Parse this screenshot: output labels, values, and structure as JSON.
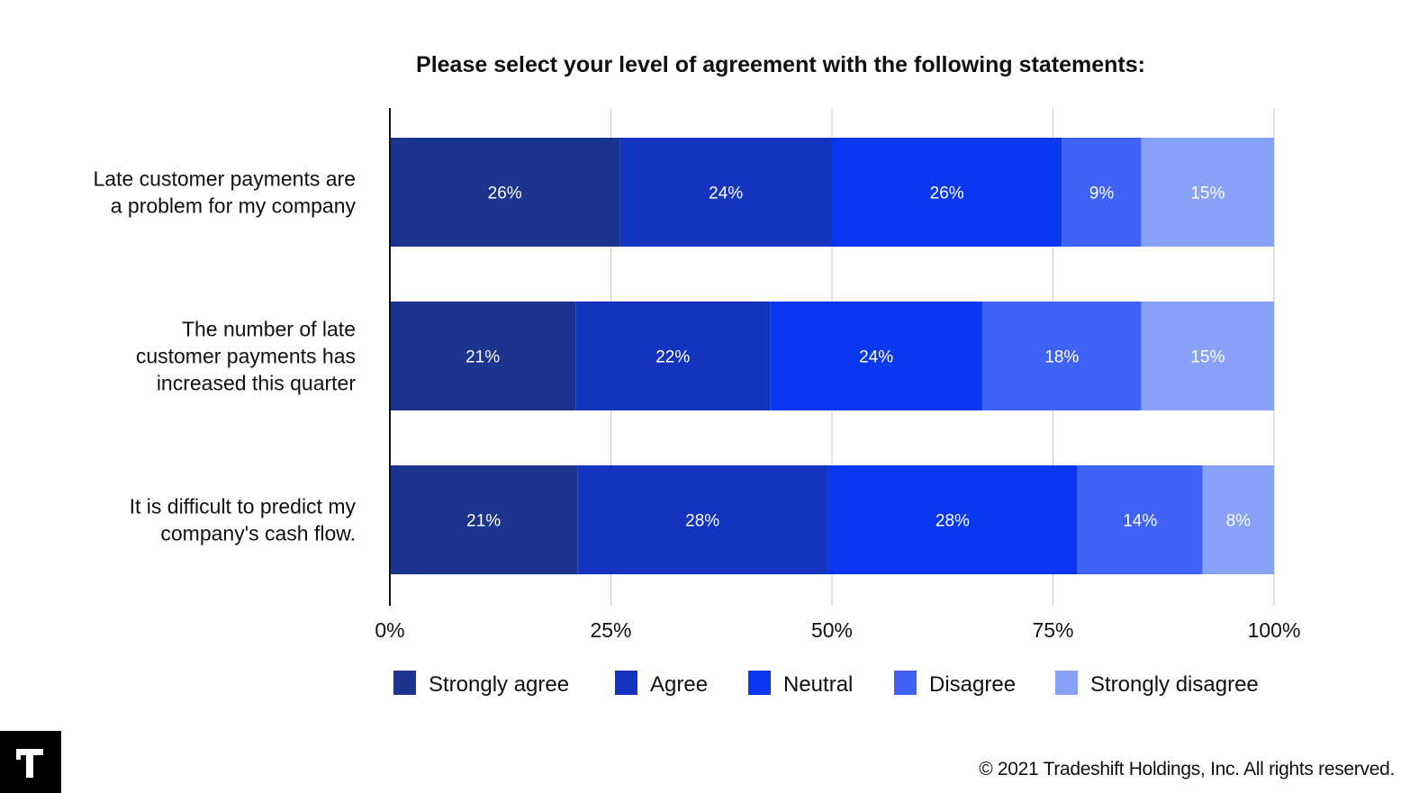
{
  "chart_data": {
    "type": "bar",
    "orientation": "horizontal",
    "stacked": true,
    "title": "Please select your level of agreement with the following statements:",
    "categories": [
      [
        "Late customer payments are",
        "a problem for my company"
      ],
      [
        "The number of late",
        "customer payments has",
        "increased this quarter"
      ],
      [
        "It is difficult to predict my",
        "company's cash flow."
      ]
    ],
    "series": [
      {
        "name": "Strongly agree",
        "color": "#1b348e",
        "values": [
          26,
          21,
          21
        ]
      },
      {
        "name": "Agree",
        "color": "#1434c0",
        "values": [
          24,
          22,
          28
        ]
      },
      {
        "name": "Neutral",
        "color": "#0a38f0",
        "values": [
          26,
          24,
          28
        ]
      },
      {
        "name": "Disagree",
        "color": "#3f63f7",
        "values": [
          9,
          18,
          14
        ]
      },
      {
        "name": "Strongly disagree",
        "color": "#87a2f8",
        "values": [
          15,
          15,
          8
        ]
      }
    ],
    "xlim": [
      0,
      100
    ],
    "xticks": [
      "0%",
      "25%",
      "50%",
      "75%",
      "100%"
    ],
    "grid": true,
    "legend": "bottom"
  },
  "footer": {
    "logo_text": "T",
    "copyright": "© 2021 Tradeshift Holdings, Inc. All rights reserved."
  }
}
